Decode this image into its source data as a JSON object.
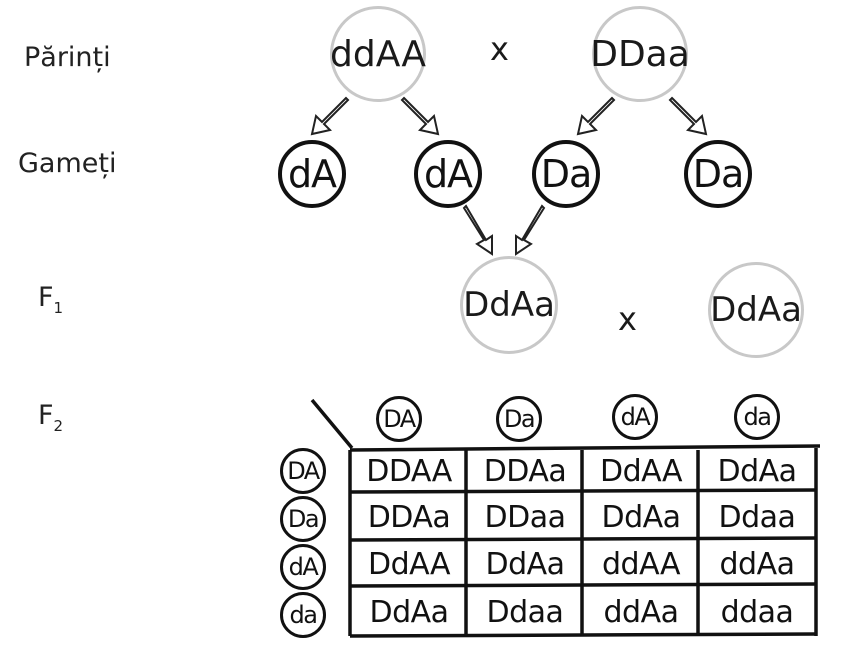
{
  "labels": {
    "parents": "Părinți",
    "gametes": "Gameți",
    "f1_base": "F",
    "f1_sub": "1",
    "f2_base": "F",
    "f2_sub": "2"
  },
  "parents": [
    "ddAA",
    "DDaa"
  ],
  "cross_symbol": "x",
  "gametes": [
    "dA",
    "dA",
    "Da",
    "Da"
  ],
  "f1": [
    "DdAa",
    "DdAa"
  ],
  "punnett": {
    "column_headers": [
      "DA",
      "Da",
      "dA",
      "da"
    ],
    "row_headers": [
      "DA",
      "Da",
      "dA",
      "da"
    ],
    "rows": [
      [
        "DDAA",
        "DDAa",
        "DdAA",
        "DdAa"
      ],
      [
        "DDAa",
        "DDaa",
        "DdAa",
        "Ddaa"
      ],
      [
        "DdAA",
        "DdAa",
        "ddAA",
        "ddAa"
      ],
      [
        "DdAa",
        "Ddaa",
        "ddAa",
        "ddaa"
      ]
    ]
  }
}
